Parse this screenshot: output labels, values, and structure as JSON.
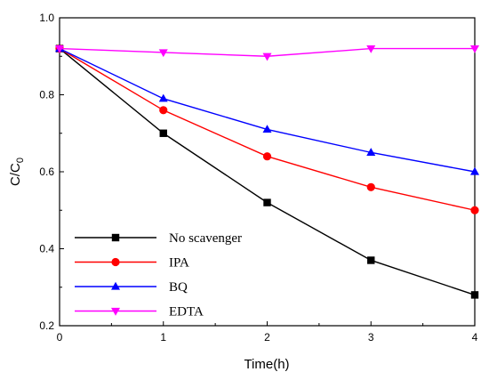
{
  "chart_data": {
    "type": "line",
    "title": "",
    "xlabel": "Time(h)",
    "ylabel_main": "C/C",
    "ylabel_sub": "0",
    "xlim": [
      0,
      4
    ],
    "ylim": [
      0.2,
      1.0
    ],
    "x_ticks": [
      "0",
      "1",
      "2",
      "3",
      "4"
    ],
    "y_ticks": [
      "0.2",
      "0.4",
      "0.6",
      "0.8",
      "1.0"
    ],
    "grid": false,
    "legend_position": "bottom-left",
    "x": [
      0,
      1,
      2,
      3,
      4
    ],
    "series": [
      {
        "name": "No scavenger",
        "marker": "square",
        "color": "#000000",
        "values": [
          0.92,
          0.7,
          0.52,
          0.37,
          0.28
        ]
      },
      {
        "name": "IPA",
        "marker": "circle",
        "color": "#ff0000",
        "values": [
          0.92,
          0.76,
          0.64,
          0.56,
          0.5
        ]
      },
      {
        "name": "BQ",
        "marker": "triangle-up",
        "color": "#0000ff",
        "values": [
          0.92,
          0.79,
          0.71,
          0.65,
          0.6
        ]
      },
      {
        "name": "EDTA",
        "marker": "triangle-down",
        "color": "#ff00ff",
        "values": [
          0.92,
          0.91,
          0.9,
          0.92,
          0.92
        ]
      }
    ]
  }
}
